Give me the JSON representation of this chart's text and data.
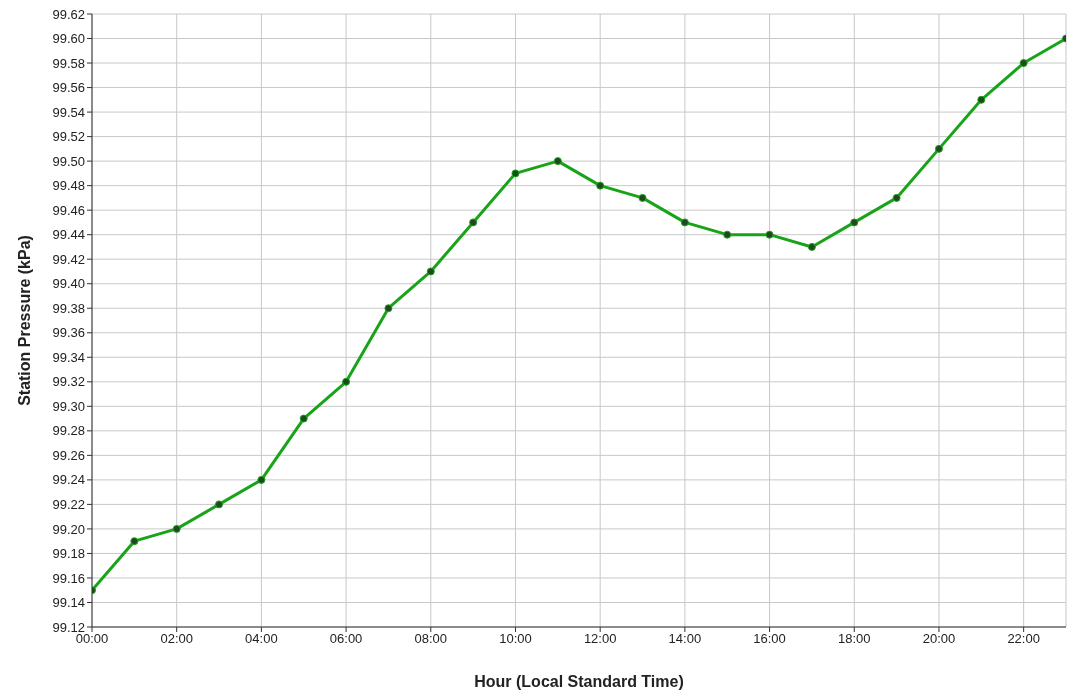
{
  "chart_data": {
    "type": "line",
    "xlabel": "Hour (Local Standard Time)",
    "ylabel": "Station Pressure (kPa)",
    "x": [
      0,
      1,
      2,
      3,
      4,
      5,
      6,
      7,
      8,
      9,
      10,
      11,
      12,
      13,
      14,
      15,
      16,
      17,
      18,
      19,
      20,
      21,
      22,
      23
    ],
    "series": [
      {
        "color": "#19a319",
        "values": [
          99.15,
          99.19,
          99.2,
          99.22,
          99.24,
          99.29,
          99.32,
          99.38,
          99.41,
          99.45,
          99.49,
          99.5,
          99.48,
          99.47,
          99.45,
          99.44,
          99.44,
          99.43,
          99.45,
          99.47,
          99.51,
          99.55,
          99.58,
          99.6
        ]
      }
    ],
    "xlim": [
      0,
      23
    ],
    "xticks": [
      {
        "value": 0,
        "label": "00:00"
      },
      {
        "value": 2,
        "label": "02:00"
      },
      {
        "value": 4,
        "label": "04:00"
      },
      {
        "value": 6,
        "label": "06:00"
      },
      {
        "value": 8,
        "label": "08:00"
      },
      {
        "value": 10,
        "label": "10:00"
      },
      {
        "value": 12,
        "label": "12:00"
      },
      {
        "value": 14,
        "label": "14:00"
      },
      {
        "value": 16,
        "label": "16:00"
      },
      {
        "value": 18,
        "label": "18:00"
      },
      {
        "value": 20,
        "label": "20:00"
      },
      {
        "value": 22,
        "label": "22:00"
      }
    ],
    "ylim": [
      99.12,
      99.62
    ],
    "yticks": [
      {
        "value": 99.12,
        "label": "99.12"
      },
      {
        "value": 99.14,
        "label": "99.14"
      },
      {
        "value": 99.16,
        "label": "99.16"
      },
      {
        "value": 99.18,
        "label": "99.18"
      },
      {
        "value": 99.2,
        "label": "99.20"
      },
      {
        "value": 99.22,
        "label": "99.22"
      },
      {
        "value": 99.24,
        "label": "99.24"
      },
      {
        "value": 99.26,
        "label": "99.26"
      },
      {
        "value": 99.28,
        "label": "99.28"
      },
      {
        "value": 99.3,
        "label": "99.30"
      },
      {
        "value": 99.32,
        "label": "99.32"
      },
      {
        "value": 99.34,
        "label": "99.34"
      },
      {
        "value": 99.36,
        "label": "99.36"
      },
      {
        "value": 99.38,
        "label": "99.38"
      },
      {
        "value": 99.4,
        "label": "99.40"
      },
      {
        "value": 99.42,
        "label": "99.42"
      },
      {
        "value": 99.44,
        "label": "99.44"
      },
      {
        "value": 99.46,
        "label": "99.46"
      },
      {
        "value": 99.48,
        "label": "99.48"
      },
      {
        "value": 99.5,
        "label": "99.50"
      },
      {
        "value": 99.52,
        "label": "99.52"
      },
      {
        "value": 99.54,
        "label": "99.54"
      },
      {
        "value": 99.56,
        "label": "99.56"
      },
      {
        "value": 99.58,
        "label": "99.58"
      },
      {
        "value": 99.6,
        "label": "99.60"
      },
      {
        "value": 99.62,
        "label": "99.62"
      }
    ],
    "grid": true,
    "marker": "circle",
    "line_style": "solid"
  }
}
